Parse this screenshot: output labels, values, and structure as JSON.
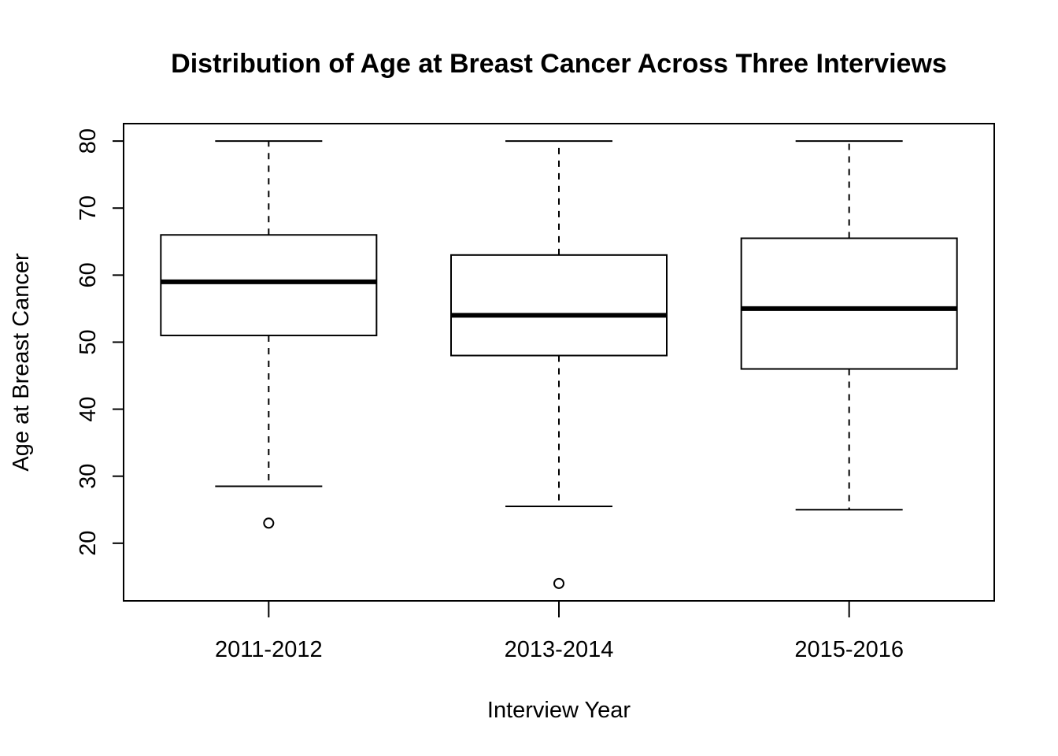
{
  "chart_data": {
    "type": "boxplot",
    "title": "Distribution of Age at Breast Cancer Across Three Interviews",
    "xlabel": "Interview Year",
    "ylabel": "Age at Breast Cancer",
    "categories": [
      "2011-2012",
      "2013-2014",
      "2015-2016"
    ],
    "boxes": [
      {
        "category": "2011-2012",
        "whisker_low": 28.5,
        "q1": 51,
        "median": 59,
        "q3": 66,
        "whisker_high": 80,
        "outliers": [
          23
        ]
      },
      {
        "category": "2013-2014",
        "whisker_low": 25.5,
        "q1": 48,
        "median": 54,
        "q3": 63,
        "whisker_high": 80,
        "outliers": [
          14
        ]
      },
      {
        "category": "2015-2016",
        "whisker_low": 25,
        "q1": 46,
        "median": 55,
        "q3": 65.5,
        "whisker_high": 80,
        "outliers": []
      }
    ],
    "y_ticks": [
      20,
      30,
      40,
      50,
      60,
      70,
      80
    ],
    "ylim": [
      11.4,
      82.6
    ],
    "grid": false,
    "legend": "none"
  }
}
